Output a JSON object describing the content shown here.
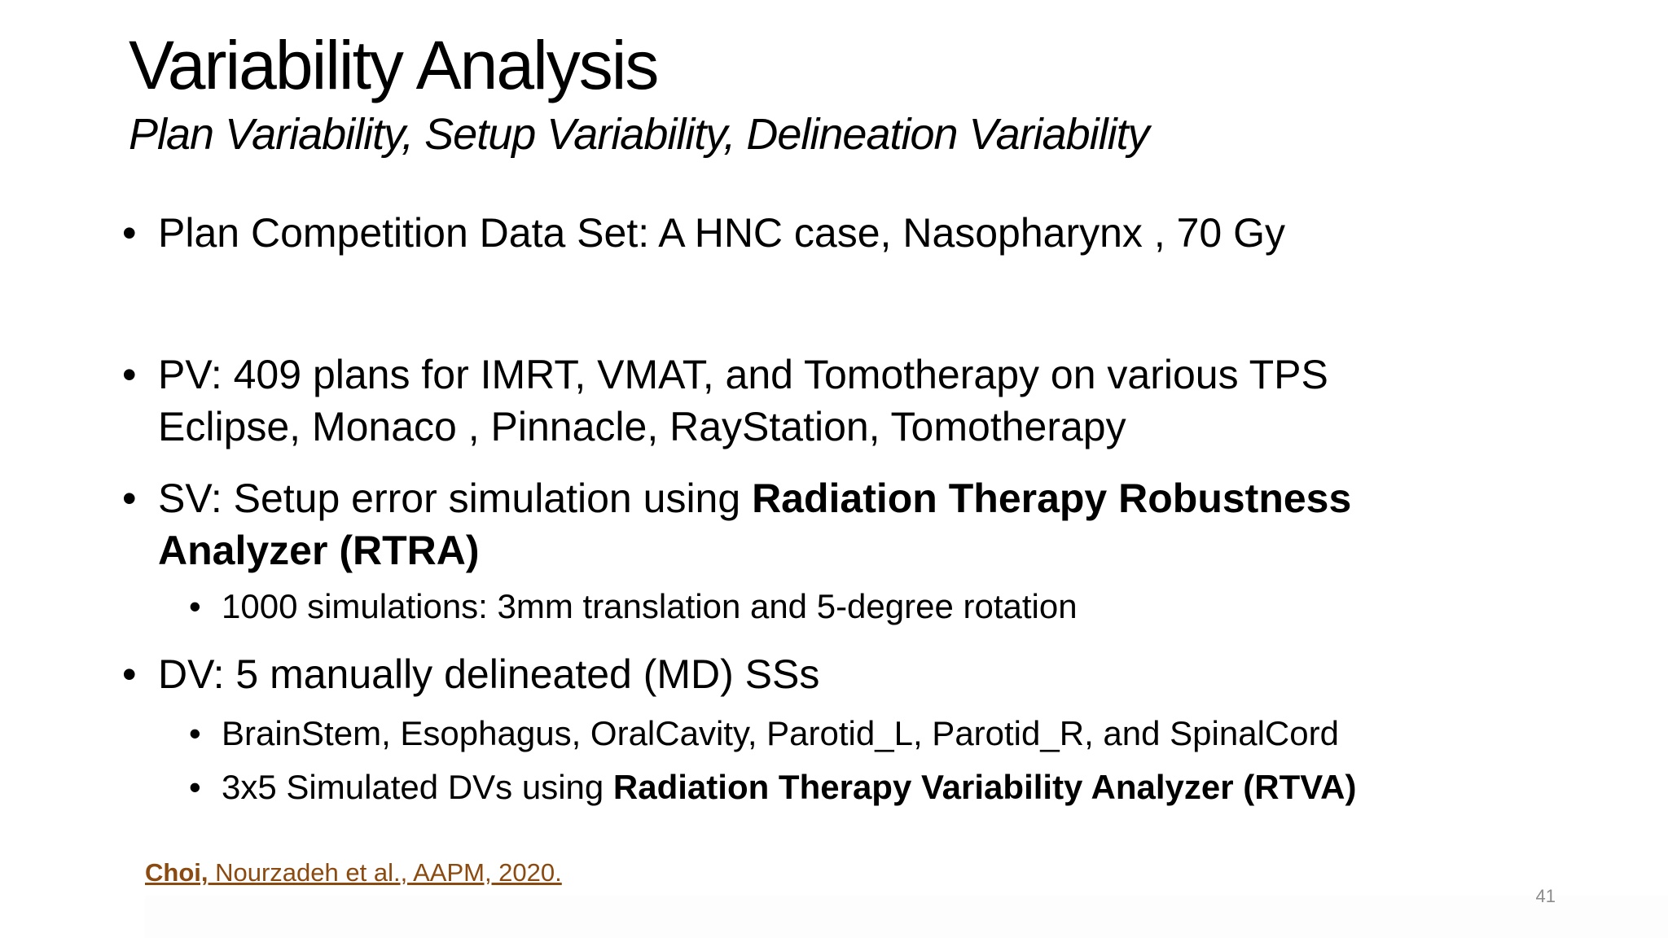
{
  "slide": {
    "title": "Variability Analysis",
    "subtitle": "Plan Variability, Setup Variability, Delineation Variability",
    "bullet_marker": "•",
    "bullets": [
      {
        "text": "Plan Competition Data Set: A HNC case, Nasopharynx , 70 Gy"
      },
      {
        "line1": "PV: 409 plans for IMRT, VMAT, and Tomotherapy on various TPS",
        "line2": "Eclipse, Monaco , Pinnacle, RayStation, Tomotherapy"
      },
      {
        "prefix": "SV: Setup error simulation using ",
        "bold_line1": "Radiation Therapy Robustness",
        "bold_line2": "Analyzer (RTRA)",
        "sub": [
          {
            "text": "1000 simulations: 3mm translation and 5-degree rotation"
          }
        ]
      },
      {
        "text": "DV: 5 manually delineated (MD) SSs",
        "sub": [
          {
            "text": "BrainStem, Esophagus, OralCavity, Parotid_L, Parotid_R, and SpinalCord"
          },
          {
            "prefix": "3x5 Simulated DVs using ",
            "bold": "Radiation Therapy Variability Analyzer (RTVA)"
          }
        ]
      }
    ],
    "citation": {
      "bold": "Choi,",
      "rest": " Nourzadeh et al., AAPM, 2020."
    },
    "page_number": "41"
  },
  "colors": {
    "background": "#ffffff",
    "text": "#000000",
    "citation": "#8a4a10",
    "page_number": "#8c8c8c"
  }
}
